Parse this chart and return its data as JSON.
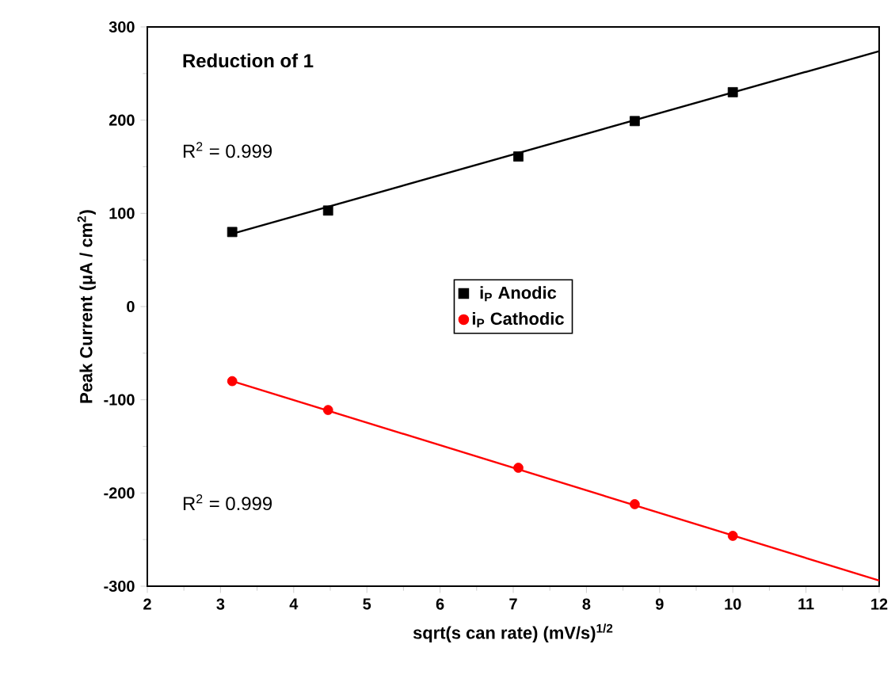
{
  "chart_data": {
    "type": "scatter",
    "xlabel": "sqrt(s can rate) (mV/s)$^{1/2}$",
    "ylabel": "Peak Current (μA / cm$^{2}$)",
    "xlim": [
      2,
      12
    ],
    "ylim": [
      -300,
      300
    ],
    "xticks": [
      2,
      3,
      4,
      5,
      6,
      7,
      8,
      9,
      10,
      11,
      12
    ],
    "yticks": [
      -300,
      -200,
      -100,
      0,
      100,
      200,
      300
    ],
    "legend": "center",
    "grid": false,
    "annotations": [
      "Reduction of 1",
      "R$^{2}$ = 0.999",
      "R$^{2}$ = 0.999"
    ],
    "series": [
      {
        "name": "i$_{P}$ Anodic",
        "marker": "square",
        "color": "#000000",
        "x": [
          3.16,
          4.47,
          7.07,
          8.66,
          10
        ],
        "values": [
          80,
          103,
          161,
          199,
          230
        ]
      },
      {
        "name": "i$_{P}$ Cathodic",
        "marker": "circle",
        "color": "#ff0000",
        "x": [
          3.16,
          4.47,
          7.07,
          8.66,
          10
        ],
        "values": [
          -80,
          -111,
          -173,
          -212,
          -246
        ]
      },
      {
        "type": "line",
        "color": "#000000",
        "x": [
          3.16,
          12
        ],
        "values": [
          78,
          274
        ]
      },
      {
        "type": "line",
        "color": "#ff0000",
        "x": [
          3.16,
          12
        ],
        "values": [
          -80,
          -294
        ]
      }
    ]
  }
}
